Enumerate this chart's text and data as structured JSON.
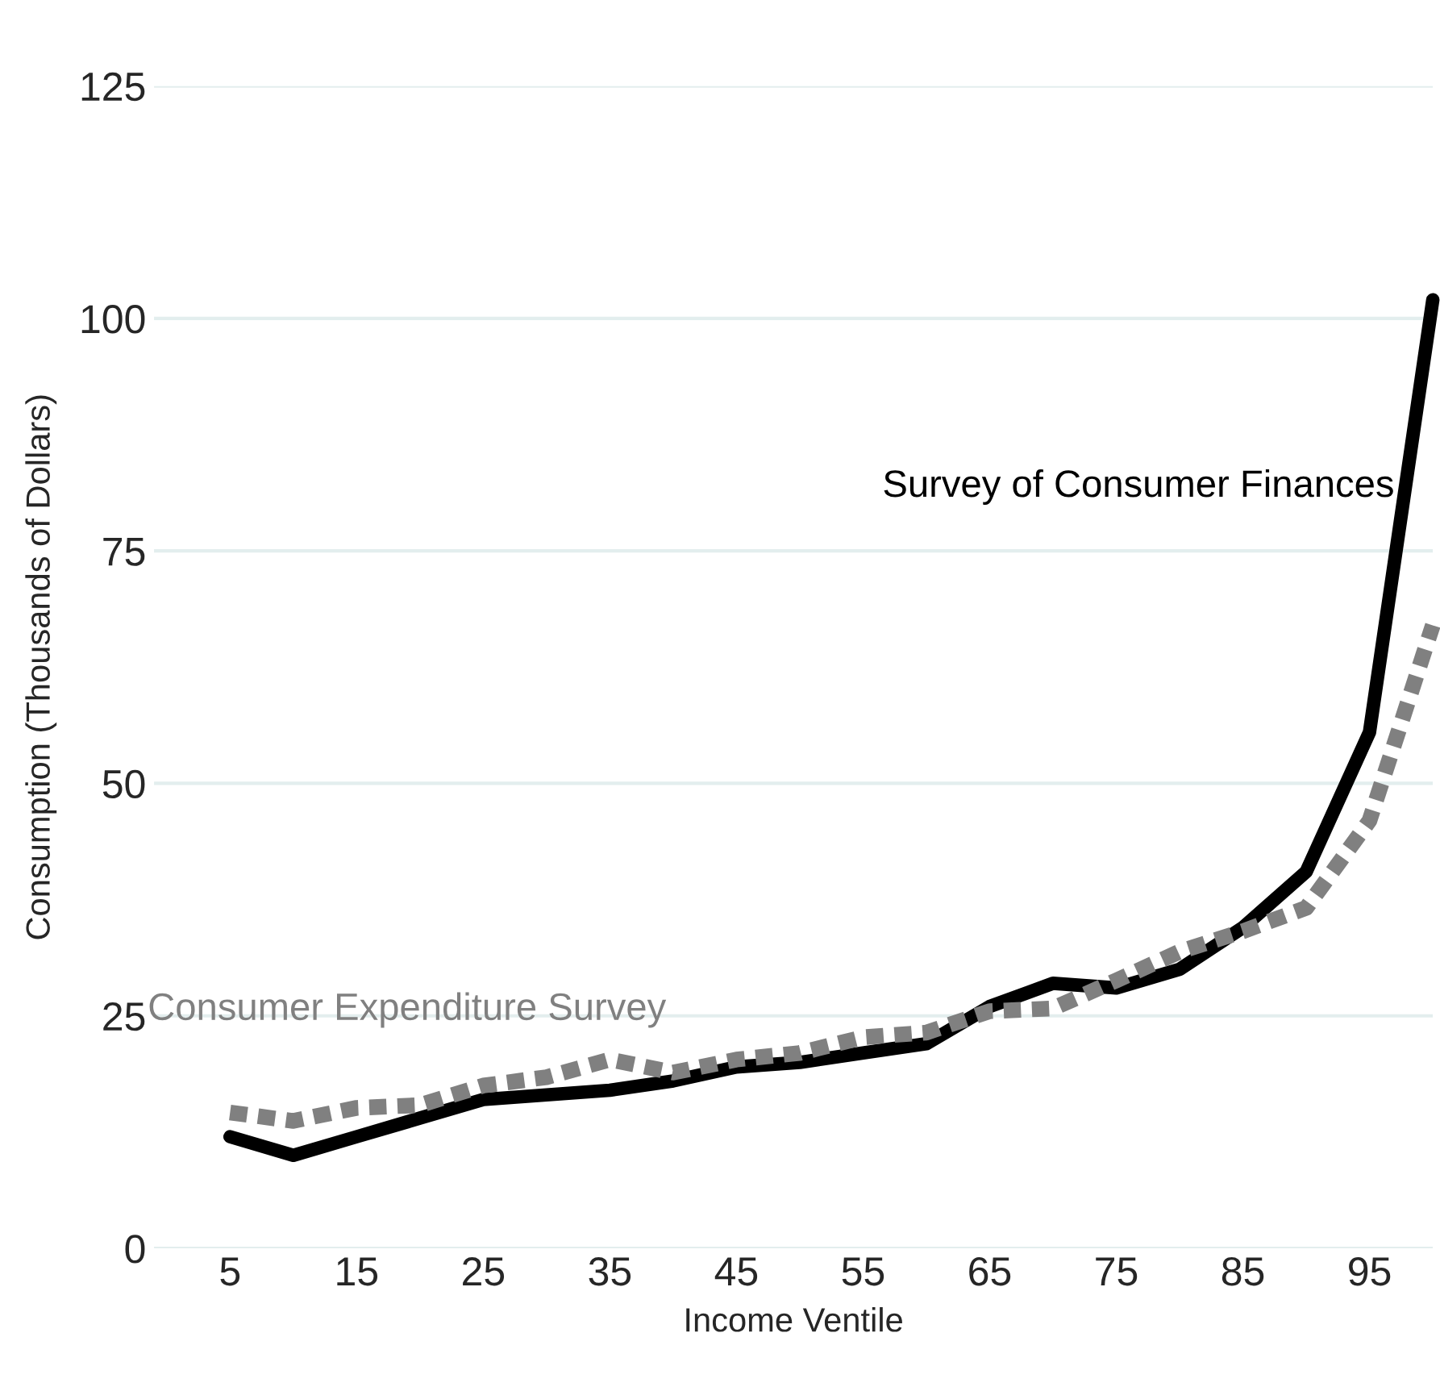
{
  "chart_data": {
    "type": "line",
    "xlabel": "Income Ventile",
    "ylabel": "Consumption (Thousands of Dollars)",
    "x": [
      5,
      10,
      15,
      20,
      25,
      30,
      35,
      40,
      45,
      50,
      55,
      60,
      65,
      70,
      75,
      80,
      85,
      90,
      95,
      100
    ],
    "series": [
      {
        "name": "Survey of Consumer Finances",
        "color": "#000000",
        "line_style": "solid",
        "values": [
          12,
          10,
          12,
          14,
          16,
          16.5,
          17,
          18,
          19.5,
          20,
          21,
          22,
          26,
          28.5,
          28,
          30,
          34.5,
          40.5,
          55.5,
          102
        ]
      },
      {
        "name": "Consumer Expenditure Survey",
        "color": "#808080",
        "line_style": "dotted",
        "values": [
          14.6,
          13.7,
          15.1,
          15.4,
          17.5,
          18.4,
          20.3,
          18.9,
          20.3,
          21,
          22.7,
          23.2,
          25.5,
          25.8,
          28.8,
          31.9,
          34.1,
          36.6,
          46,
          67
        ]
      }
    ],
    "xlim": [
      -1,
      100
    ],
    "ylim": [
      0,
      125
    ],
    "xticks": [
      5,
      15,
      25,
      35,
      45,
      55,
      65,
      75,
      85,
      95
    ],
    "yticks": [
      0,
      25,
      50,
      75,
      100,
      125
    ],
    "grid": "y",
    "legend": false
  }
}
